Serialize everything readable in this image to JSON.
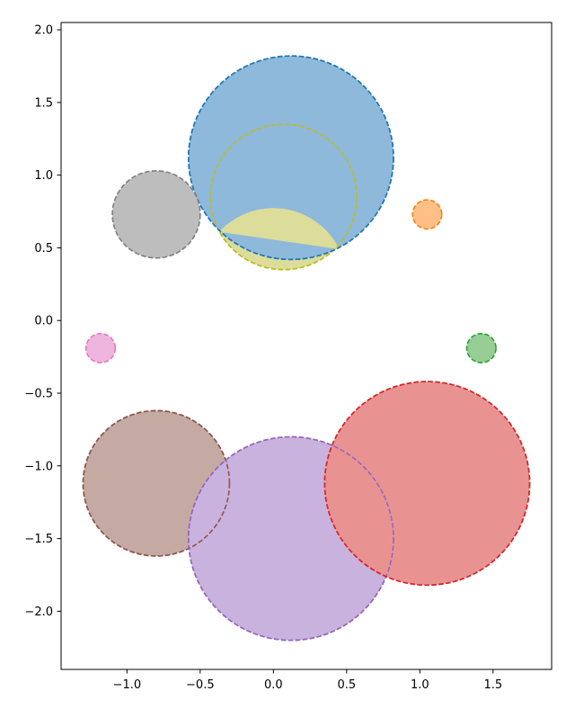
{
  "chart_data": {
    "type": "scatter",
    "title": "",
    "xlabel": "",
    "ylabel": "",
    "xlim": [
      -1.45,
      1.9
    ],
    "ylim": [
      -2.4,
      2.05
    ],
    "x_ticks": [
      {
        "value": -1.0,
        "label": "−1.0"
      },
      {
        "value": -0.5,
        "label": "−0.5"
      },
      {
        "value": 0.0,
        "label": "0.0"
      },
      {
        "value": 0.5,
        "label": "0.5"
      },
      {
        "value": 1.0,
        "label": "1.0"
      },
      {
        "value": 1.5,
        "label": "1.5"
      }
    ],
    "y_ticks": [
      {
        "value": 2.0,
        "label": "2.0"
      },
      {
        "value": 1.5,
        "label": "1.5"
      },
      {
        "value": 1.0,
        "label": "1.0"
      },
      {
        "value": 0.5,
        "label": "0.5"
      },
      {
        "value": 0.0,
        "label": "0.0"
      },
      {
        "value": -0.5,
        "label": "−0.5"
      },
      {
        "value": -1.0,
        "label": "−1.0"
      },
      {
        "value": -1.5,
        "label": "−1.5"
      },
      {
        "value": -2.0,
        "label": "−2.0"
      }
    ],
    "grid": false,
    "circles": [
      {
        "id": "blue",
        "cx": 0.12,
        "cy": 1.12,
        "r": 0.7,
        "edge": "#1f77b4",
        "fill": "#8fb9da"
      },
      {
        "id": "olive",
        "cx": 0.07,
        "cy": 0.85,
        "r": 0.5,
        "edge": "#bcbd22",
        "fill": "#dcdc9b"
      },
      {
        "id": "gray",
        "cx": -0.8,
        "cy": 0.73,
        "r": 0.3,
        "edge": "#7f7f7f",
        "fill": "#bdbdbd"
      },
      {
        "id": "orange",
        "cx": 1.05,
        "cy": 0.73,
        "r": 0.1,
        "edge": "#ff7f0e",
        "fill": "#ffbf86"
      },
      {
        "id": "pink",
        "cx": -1.18,
        "cy": -0.19,
        "r": 0.1,
        "edge": "#e377c2",
        "fill": "#f0b5df"
      },
      {
        "id": "green",
        "cx": 1.42,
        "cy": -0.19,
        "r": 0.1,
        "edge": "#2ca02c",
        "fill": "#96ce96"
      },
      {
        "id": "brown",
        "cx": -0.8,
        "cy": -1.12,
        "r": 0.5,
        "edge": "#8c564b",
        "fill": "#c5aaa4"
      },
      {
        "id": "red",
        "cx": 1.05,
        "cy": -1.12,
        "r": 0.7,
        "edge": "#d62728",
        "fill": "#e99292"
      },
      {
        "id": "purple",
        "cx": 0.12,
        "cy": -1.5,
        "r": 0.7,
        "edge": "#9467bd",
        "fill": "#c9b2de"
      }
    ],
    "overlaps": {
      "blue_over_olive_chord": {
        "from": [
          -0.37,
          0.61
        ],
        "to": [
          0.45,
          0.49
        ]
      },
      "purple_over_brown_chord": {
        "from": [
          -0.32,
          -1.0
        ],
        "to": [
          -0.57,
          -1.54
        ]
      },
      "red_over_purple_chord": {
        "from": [
          0.42,
          -0.87
        ],
        "to": [
          0.78,
          -1.75
        ]
      }
    }
  }
}
